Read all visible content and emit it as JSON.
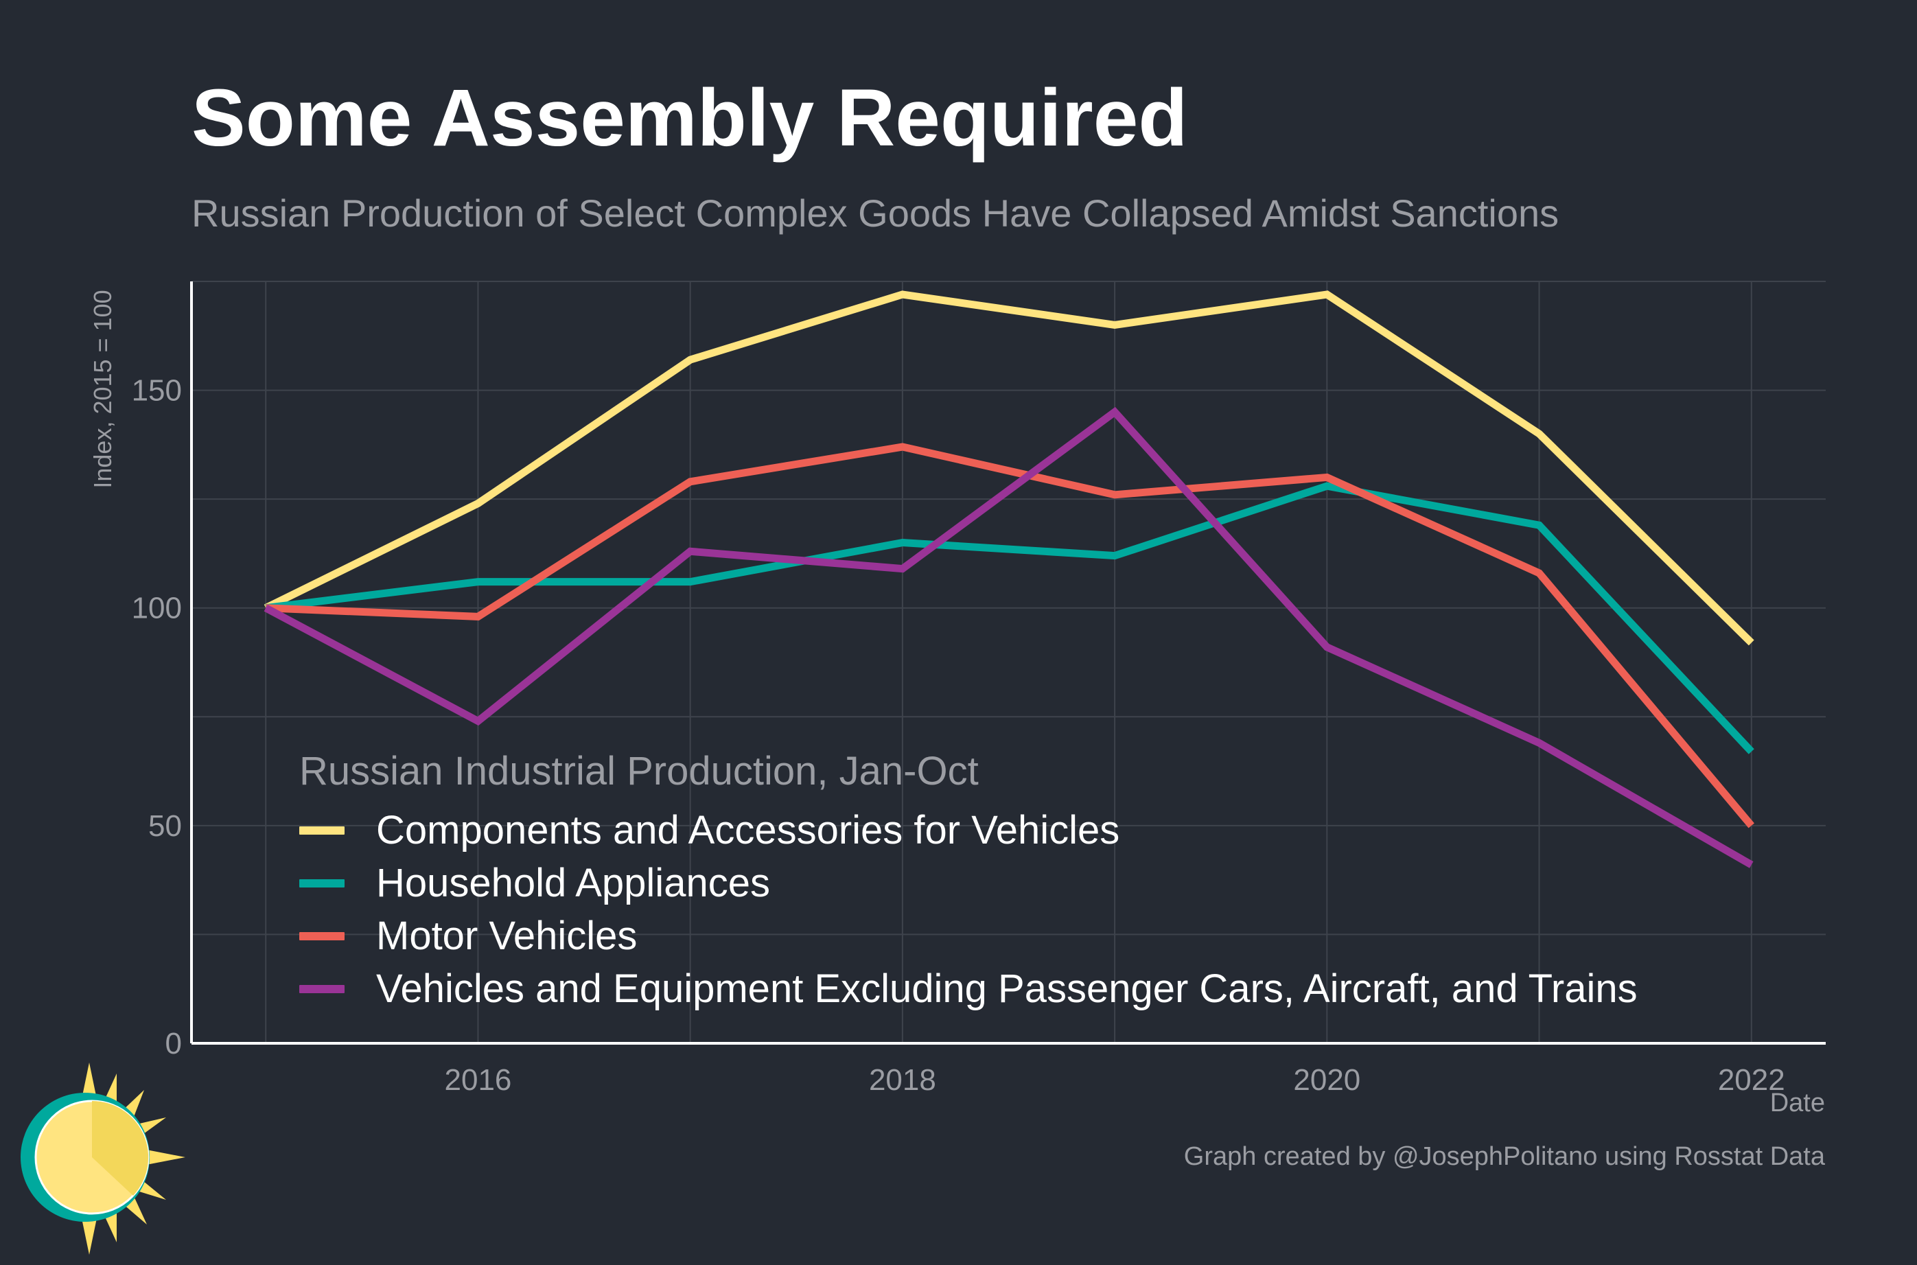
{
  "title": "Some Assembly Required",
  "subtitle": "Russian Production of Select Complex Goods Have Collapsed Amidst Sanctions",
  "caption": "Graph created by @JosephPolitano using Rosstat Data",
  "logo_icon": "sun-logo-icon",
  "chart_data": {
    "type": "line",
    "title": "Some Assembly Required",
    "subtitle": "Russian Production of Select Complex Goods Have Collapsed Amidst Sanctions",
    "xlabel": "Date",
    "ylabel": "Index, 2015 = 100",
    "x": [
      2015,
      2016,
      2017,
      2018,
      2019,
      2020,
      2021,
      2022
    ],
    "xlim": [
      2014.65,
      2022.35
    ],
    "ylim": [
      0,
      175
    ],
    "x_ticks": [
      2016,
      2018,
      2020,
      2022
    ],
    "x_tick_labels": [
      "2016",
      "2018",
      "2020",
      "2022"
    ],
    "y_ticks": [
      0,
      50,
      100,
      150
    ],
    "y_tick_labels": [
      "0",
      "50",
      "100",
      "150"
    ],
    "grid": true,
    "legend_title": "Russian Industrial Production, Jan-Oct",
    "legend_position": "bottom-left",
    "series": [
      {
        "name": "Components and Accessories for Vehicles",
        "color": "#ffe480",
        "values": [
          100,
          124,
          157,
          172,
          165,
          172,
          140,
          92
        ]
      },
      {
        "name": "Household Appliances",
        "color": "#00a99d",
        "values": [
          100,
          106,
          106,
          115,
          112,
          128,
          119,
          67
        ]
      },
      {
        "name": "Motor Vehicles",
        "color": "#ee6055",
        "values": [
          100,
          98,
          129,
          137,
          126,
          130,
          108,
          50
        ]
      },
      {
        "name": "Vehicles and Equipment Excluding Passenger Cars, Aircraft, and Trains",
        "color": "#9a3497",
        "values": [
          100,
          74,
          113,
          109,
          145,
          91,
          69,
          41
        ]
      }
    ]
  }
}
